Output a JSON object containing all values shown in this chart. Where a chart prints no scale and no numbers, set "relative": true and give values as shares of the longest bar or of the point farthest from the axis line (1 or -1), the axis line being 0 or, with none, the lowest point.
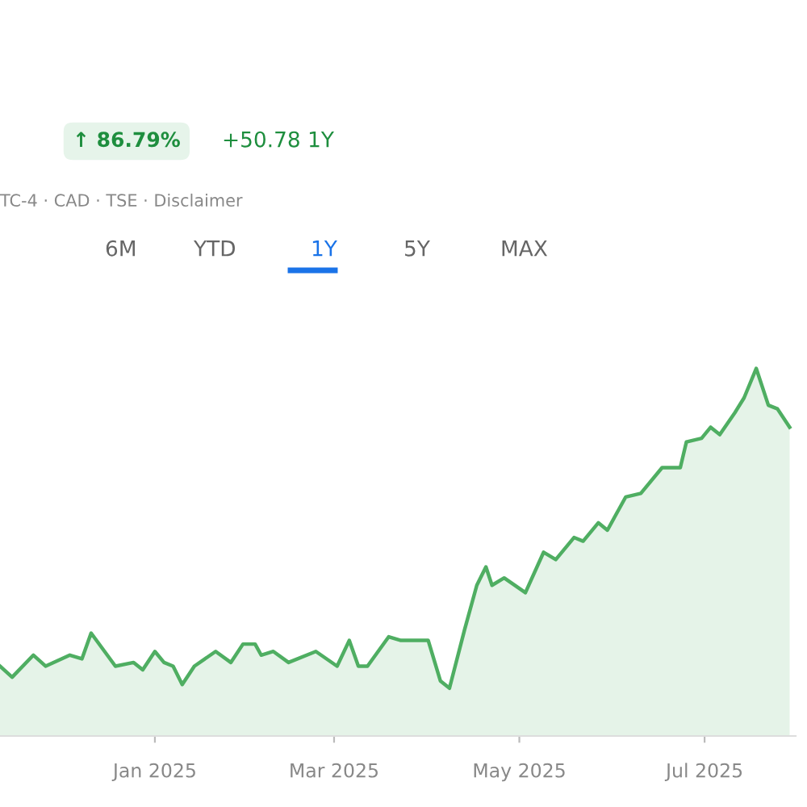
{
  "chart_data": {
    "type": "area",
    "relative": true,
    "color": "#4fae62",
    "x": [
      "2024-11-11",
      "2024-11-15",
      "2024-11-22",
      "2024-11-26",
      "2024-12-04",
      "2024-12-08",
      "2024-12-11",
      "2024-12-19",
      "2024-12-25",
      "2024-12-28",
      "2025-01-01",
      "2025-01-04",
      "2025-01-07",
      "2025-01-10",
      "2025-01-14",
      "2025-01-21",
      "2025-01-26",
      "2025-01-30",
      "2025-02-03",
      "2025-02-05",
      "2025-02-09",
      "2025-02-14",
      "2025-02-23",
      "2025-03-02",
      "2025-03-06",
      "2025-03-09",
      "2025-03-12",
      "2025-03-19",
      "2025-03-23",
      "2025-04-01",
      "2025-04-05",
      "2025-04-08",
      "2025-04-13",
      "2025-04-17",
      "2025-04-20",
      "2025-04-22",
      "2025-04-26",
      "2025-05-03",
      "2025-05-09",
      "2025-05-13",
      "2025-05-19",
      "2025-05-22",
      "2025-05-27",
      "2025-05-30",
      "2025-06-05",
      "2025-06-10",
      "2025-06-17",
      "2025-06-23",
      "2025-06-25",
      "2025-06-30",
      "2025-07-03",
      "2025-07-06",
      "2025-07-11",
      "2025-07-14",
      "2025-07-18",
      "2025-07-22",
      "2025-07-25",
      "2025-07-29"
    ],
    "values": [
      0.19,
      0.16,
      0.22,
      0.19,
      0.22,
      0.21,
      0.28,
      0.19,
      0.2,
      0.18,
      0.23,
      0.2,
      0.19,
      0.14,
      0.19,
      0.23,
      0.2,
      0.25,
      0.25,
      0.22,
      0.23,
      0.2,
      0.23,
      0.19,
      0.26,
      0.19,
      0.19,
      0.27,
      0.26,
      0.26,
      0.15,
      0.13,
      0.29,
      0.41,
      0.46,
      0.41,
      0.43,
      0.39,
      0.5,
      0.48,
      0.54,
      0.53,
      0.58,
      0.56,
      0.65,
      0.66,
      0.73,
      0.73,
      0.8,
      0.81,
      0.84,
      0.82,
      0.88,
      0.92,
      1,
      0.9,
      0.89,
      0.84
    ],
    "xlim": [
      "2024-11-11",
      "2025-07-31"
    ],
    "xticks": [
      {
        "value": "2025-01-01",
        "label": "Jan 2025"
      },
      {
        "value": "2025-03-01",
        "label": "Mar 2025"
      },
      {
        "value": "2025-05-01",
        "label": "May 2025"
      },
      {
        "value": "2025-07-01",
        "label": "Jul 2025"
      }
    ],
    "grid": false,
    "legend": false,
    "annotations": [
      "↑ 86.79%",
      "+50.78 1Y",
      "TC-4 · CAD · TSE · Disclaimer",
      "6M",
      "YTD",
      "1Y",
      "5Y",
      "MAX"
    ]
  }
}
